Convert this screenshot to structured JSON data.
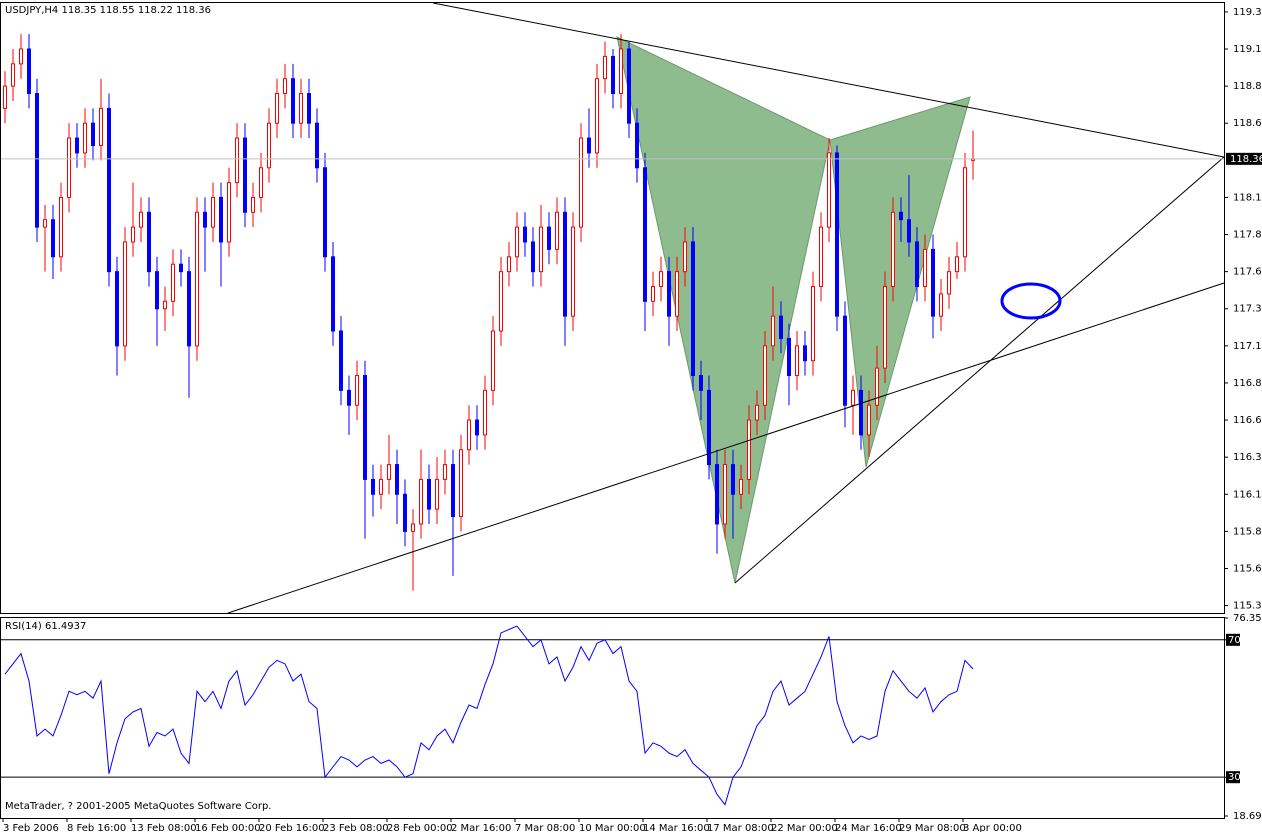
{
  "chart_data": [
    {
      "type": "candlestick",
      "title": "USDJPY,H4  118.35 118.55 118.22 118.36",
      "up_color": "#ff0000",
      "down_color": "#0000ff",
      "last_price": 118.36,
      "categories": [
        "3 Feb 2006",
        null,
        null,
        null,
        null,
        null,
        null,
        null,
        "8 Feb 16:00",
        null,
        null,
        null,
        null,
        null,
        null,
        null,
        "13 Feb 08:00",
        null,
        null,
        null,
        null,
        null,
        null,
        null,
        "16 Feb 00:00",
        null,
        null,
        null,
        null,
        null,
        null,
        null,
        "20 Feb 16:00",
        null,
        null,
        null,
        null,
        null,
        null,
        null,
        "23 Feb 08:00",
        null,
        null,
        null,
        null,
        null,
        null,
        null,
        "28 Feb 00:00",
        null,
        null,
        null,
        null,
        null,
        null,
        null,
        "2 Mar 16:00",
        null,
        null,
        null,
        null,
        null,
        null,
        null,
        "7 Mar 08:00",
        null,
        null,
        null,
        null,
        null,
        null,
        null,
        "10 Mar 00:00",
        null,
        null,
        null,
        null,
        null,
        null,
        null,
        "14 Mar 16:00",
        null,
        null,
        null,
        null,
        null,
        null,
        null,
        "17 Mar 08:00",
        null,
        null,
        null,
        null,
        null,
        null,
        null,
        "22 Mar 00:00",
        null,
        null,
        null,
        null,
        null,
        null,
        null,
        "24 Mar 16:00",
        null,
        null,
        null,
        null,
        null,
        null,
        null,
        "29 Mar 08:00",
        null,
        null,
        null,
        null,
        null,
        null,
        null,
        "3 Apr 00:00",
        null
      ],
      "open": [
        118.7,
        118.85,
        119.0,
        119.1,
        118.8,
        117.9,
        117.95,
        117.7,
        118.1,
        118.5,
        118.4,
        118.6,
        118.45,
        118.7,
        117.6,
        117.1,
        117.8,
        117.9,
        118.0,
        117.6,
        117.35,
        117.4,
        117.65,
        117.6,
        117.1,
        118.0,
        117.9,
        118.1,
        117.8,
        118.2,
        118.5,
        118.0,
        118.1,
        118.3,
        118.6,
        118.8,
        118.9,
        118.6,
        118.8,
        118.6,
        118.3,
        117.7,
        117.2,
        116.8,
        116.7,
        116.9,
        116.2,
        116.1,
        116.2,
        116.3,
        116.1,
        115.85,
        115.9,
        116.2,
        116.0,
        116.2,
        116.3,
        115.95,
        116.4,
        116.6,
        116.5,
        116.8,
        117.2,
        117.6,
        117.7,
        117.9,
        117.8,
        117.6,
        117.9,
        117.75,
        118.0,
        117.3,
        117.9,
        118.5,
        118.4,
        118.9,
        119.05,
        118.8,
        119.1,
        118.6,
        118.3,
        117.4,
        117.5,
        117.6,
        117.3,
        117.6,
        117.8,
        116.9,
        116.8,
        116.3,
        115.9,
        116.3,
        116.1,
        116.2,
        116.6,
        116.7,
        117.1,
        117.3,
        117.15,
        116.9,
        117.1,
        117.0,
        117.5,
        117.9,
        118.4,
        117.3,
        116.7,
        116.8,
        116.5,
        116.7,
        116.95,
        117.5,
        118.0,
        117.95,
        117.8,
        117.5,
        117.75,
        117.3,
        117.45,
        117.6,
        117.7,
        118.35
      ],
      "high": [
        118.95,
        119.1,
        119.2,
        119.2,
        118.9,
        118.05,
        118.05,
        118.2,
        118.6,
        118.6,
        118.7,
        118.7,
        118.9,
        118.8,
        117.7,
        117.9,
        118.2,
        118.1,
        118.1,
        117.7,
        117.5,
        117.75,
        117.75,
        117.7,
        118.1,
        118.1,
        118.2,
        118.2,
        118.3,
        118.6,
        118.6,
        118.2,
        118.4,
        118.7,
        118.9,
        119.0,
        119.0,
        118.9,
        118.9,
        118.7,
        118.4,
        117.8,
        117.3,
        116.9,
        117.0,
        117.0,
        116.3,
        116.3,
        116.5,
        116.4,
        116.2,
        116.0,
        116.4,
        116.3,
        116.35,
        116.4,
        116.4,
        116.5,
        116.7,
        116.7,
        116.9,
        117.3,
        117.7,
        117.8,
        118.0,
        118.0,
        117.9,
        118.05,
        118.0,
        118.1,
        118.1,
        118.0,
        118.6,
        118.7,
        119.0,
        119.15,
        119.1,
        119.2,
        119.15,
        118.7,
        118.4,
        117.6,
        117.7,
        117.7,
        117.7,
        117.9,
        117.9,
        117.0,
        116.9,
        116.4,
        116.4,
        116.4,
        116.3,
        116.7,
        116.8,
        117.2,
        117.5,
        117.4,
        117.25,
        117.2,
        117.2,
        117.6,
        118.0,
        118.5,
        118.45,
        117.4,
        116.9,
        116.9,
        116.8,
        117.1,
        117.6,
        118.1,
        118.1,
        118.25,
        117.9,
        117.85,
        117.85,
        117.55,
        117.7,
        117.8,
        118.4,
        118.55
      ],
      "low": [
        118.6,
        118.75,
        118.9,
        118.7,
        117.8,
        117.6,
        117.55,
        117.6,
        118.0,
        118.3,
        118.3,
        118.35,
        118.35,
        117.5,
        116.9,
        117.0,
        117.7,
        117.8,
        117.5,
        117.1,
        117.2,
        117.3,
        117.5,
        116.75,
        117.0,
        117.6,
        117.8,
        117.5,
        117.7,
        118.1,
        117.9,
        117.9,
        118.0,
        118.2,
        118.5,
        118.7,
        118.5,
        118.5,
        118.5,
        118.2,
        117.6,
        117.1,
        116.7,
        116.5,
        116.6,
        115.8,
        115.95,
        116.0,
        116.1,
        115.9,
        115.75,
        115.45,
        115.8,
        115.9,
        115.9,
        116.1,
        115.55,
        115.85,
        116.3,
        116.4,
        116.4,
        116.7,
        117.1,
        117.5,
        117.6,
        117.7,
        117.5,
        117.5,
        117.65,
        117.65,
        117.1,
        117.2,
        117.8,
        118.3,
        118.3,
        118.8,
        118.7,
        118.7,
        118.5,
        118.2,
        117.2,
        117.3,
        117.4,
        117.1,
        117.2,
        117.5,
        116.8,
        116.6,
        116.2,
        115.7,
        115.8,
        115.8,
        116.0,
        116.1,
        116.5,
        116.6,
        117.0,
        117.05,
        116.7,
        116.8,
        116.9,
        116.9,
        117.4,
        117.8,
        117.2,
        116.55,
        116.5,
        116.4,
        116.35,
        116.6,
        116.85,
        117.4,
        117.8,
        117.7,
        117.4,
        117.4,
        117.15,
        117.2,
        117.35,
        117.55,
        117.6,
        118.22
      ],
      "close": [
        118.85,
        119.0,
        119.1,
        118.8,
        117.9,
        117.95,
        117.7,
        118.1,
        118.5,
        118.4,
        118.6,
        118.45,
        118.7,
        117.6,
        117.1,
        117.8,
        117.9,
        118.0,
        117.6,
        117.35,
        117.4,
        117.65,
        117.6,
        117.1,
        118.0,
        117.9,
        118.1,
        117.8,
        118.2,
        118.5,
        118.0,
        118.1,
        118.3,
        118.6,
        118.8,
        118.9,
        118.6,
        118.8,
        118.6,
        118.3,
        117.7,
        117.2,
        116.8,
        116.7,
        116.9,
        116.2,
        116.1,
        116.2,
        116.3,
        116.1,
        115.85,
        115.9,
        116.2,
        116.0,
        116.2,
        116.3,
        115.95,
        116.4,
        116.6,
        116.5,
        116.8,
        117.2,
        117.6,
        117.7,
        117.9,
        117.8,
        117.6,
        117.9,
        117.75,
        118.0,
        117.3,
        117.9,
        118.5,
        118.4,
        118.9,
        119.05,
        118.8,
        119.1,
        118.6,
        118.3,
        117.4,
        117.5,
        117.6,
        117.3,
        117.6,
        117.8,
        116.9,
        116.8,
        116.3,
        115.9,
        116.3,
        116.1,
        116.2,
        116.6,
        116.7,
        117.1,
        117.3,
        117.15,
        116.9,
        117.1,
        117.0,
        117.5,
        117.9,
        118.4,
        117.3,
        116.7,
        116.8,
        116.5,
        116.7,
        116.95,
        117.5,
        118.0,
        117.95,
        117.8,
        117.5,
        117.75,
        117.3,
        117.45,
        117.6,
        117.7,
        118.3,
        118.36
      ],
      "ylim": [
        115.3,
        119.41
      ],
      "yticks": [
        115.35,
        {
          "value": 115.6,
          "label": "115.60"
        },
        115.85,
        {
          "value": 116.1,
          "label": "116.10"
        },
        116.35,
        {
          "value": 116.6,
          "label": "116.60"
        },
        116.85,
        {
          "value": 117.1,
          "label": "117.10"
        },
        117.35,
        {
          "value": 117.6,
          "label": "117.60"
        },
        117.85,
        {
          "value": 118.1,
          "label": "118.10"
        },
        {
          "value": 118.6,
          "label": "118.60"
        },
        118.85,
        {
          "value": 119.1,
          "label": "119.10"
        },
        119.35
      ]
    },
    {
      "type": "line",
      "title": "RSI(14) 61.4937",
      "color": "#0000ff",
      "annotation": "MetaTrader, ? 2001-2005 MetaQuotes Software Corp.",
      "values": [
        60,
        63,
        66,
        58,
        42,
        44,
        42,
        48,
        55,
        54,
        55,
        53,
        58,
        31,
        40,
        47,
        49,
        50,
        39,
        43,
        42,
        44,
        37,
        34,
        55,
        52,
        55,
        50,
        58,
        61,
        51,
        54,
        58,
        62,
        64,
        63,
        58,
        60,
        52,
        50,
        30,
        33,
        36,
        35,
        33,
        35,
        36,
        34,
        35,
        33,
        30,
        31,
        40,
        38,
        42,
        44,
        40,
        46,
        51,
        50,
        57,
        63,
        72,
        73,
        74,
        71,
        68,
        70,
        63,
        65,
        58,
        62,
        68,
        64,
        69,
        70,
        66,
        68,
        58,
        55,
        37,
        40,
        39,
        37,
        36,
        38,
        34,
        32,
        30,
        25,
        22,
        30,
        33,
        39,
        45,
        48,
        55,
        58,
        51,
        53,
        55,
        60,
        65,
        71,
        52,
        45,
        40,
        42,
        41,
        42,
        55,
        61,
        58,
        55,
        53,
        56,
        49,
        52,
        54,
        55,
        64,
        61.4937
      ],
      "ylim": [
        18.6956,
        76.3506
      ],
      "yticks": [
        18.6956,
        30,
        70,
        76.3506
      ],
      "levels": [
        30,
        70
      ]
    }
  ]
}
